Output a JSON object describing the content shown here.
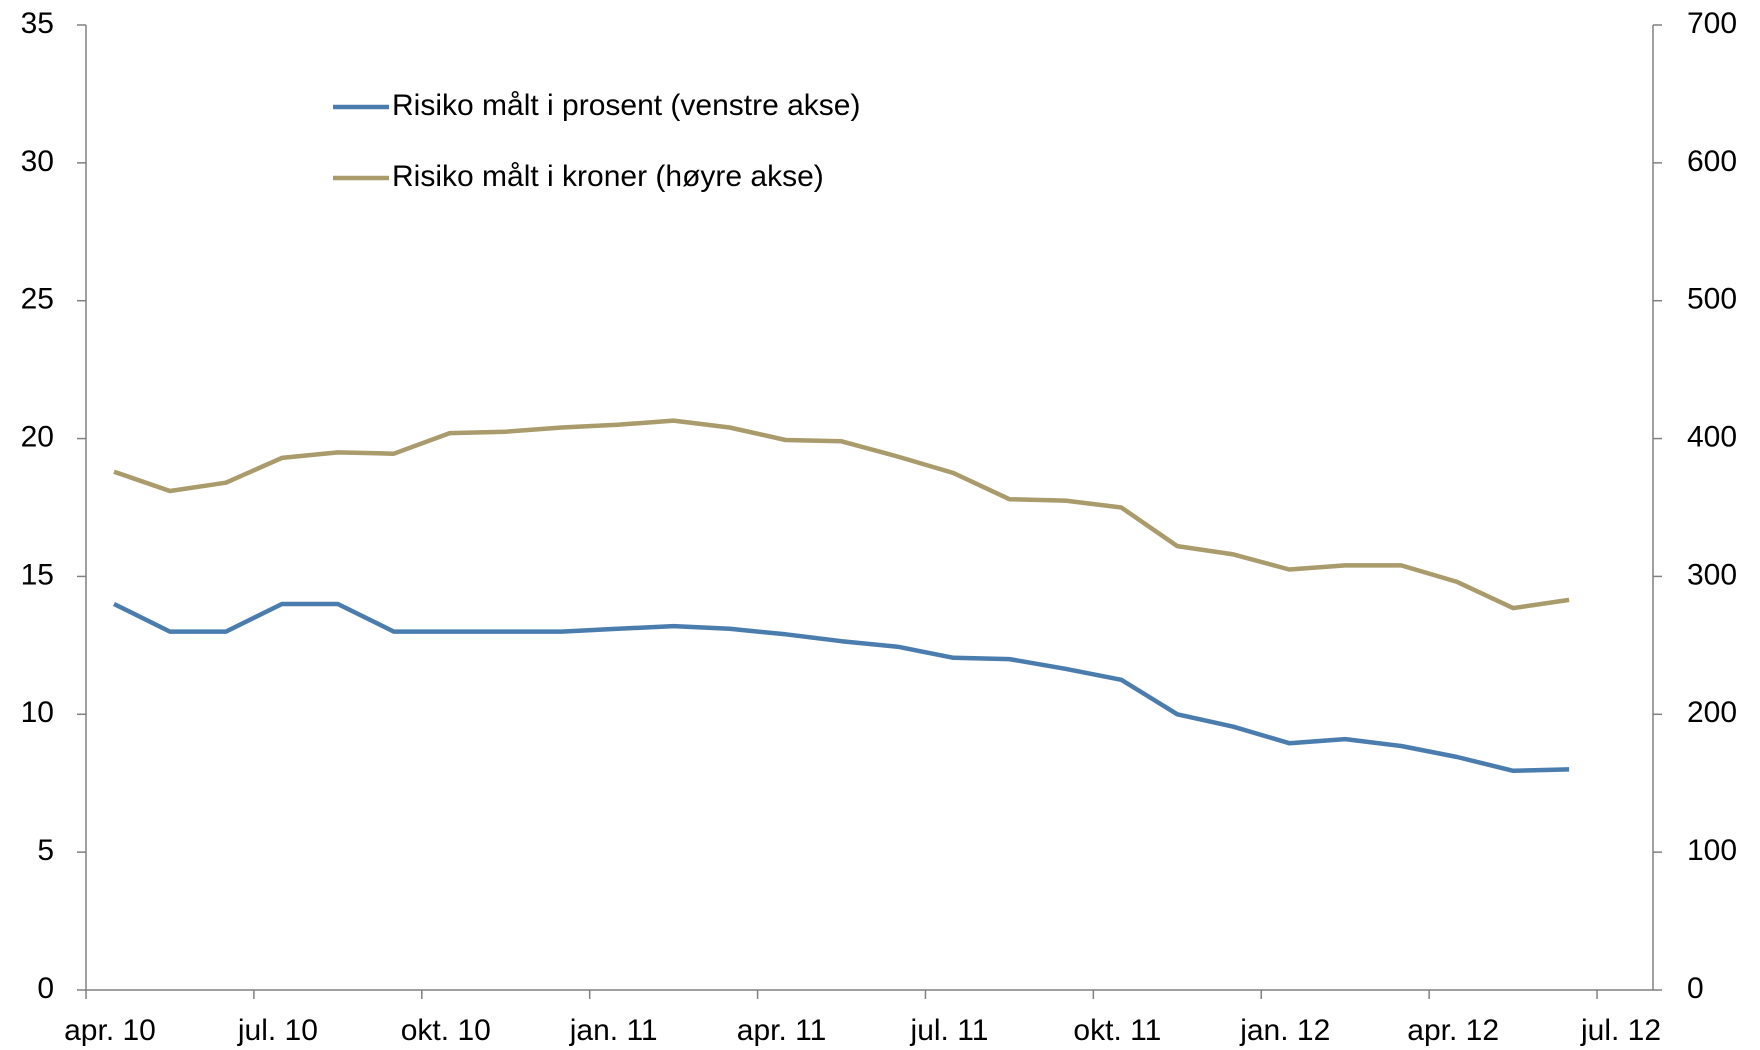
{
  "chart_data": {
    "type": "line",
    "categories": [
      "apr. 10",
      null,
      null,
      "jul. 10",
      null,
      null,
      "okt. 10",
      null,
      null,
      "jan. 11",
      null,
      null,
      "apr. 11",
      null,
      null,
      "jul. 11",
      null,
      null,
      "okt. 11",
      null,
      null,
      "jan. 12",
      null,
      null,
      "apr. 12",
      null,
      null,
      "jul. 12"
    ],
    "series": [
      {
        "name": "Risiko målt i prosent (venstre akse)",
        "color": "#4a7cae",
        "axis": "y",
        "values": [
          14,
          13,
          13,
          14,
          14,
          13,
          13,
          13,
          13,
          13.1,
          13.2,
          13.1,
          12.9,
          12.65,
          12.45,
          12.05,
          12.0,
          11.65,
          11.25,
          10.0,
          9.55,
          8.95,
          9.1,
          8.85,
          8.45,
          7.95,
          8.0,
          null
        ]
      },
      {
        "name": "Risiko målt i kroner (høyre akse)",
        "color": "#a99b6b",
        "axis": "y2",
        "values": [
          376,
          362,
          368,
          386,
          390,
          389,
          404,
          405,
          408,
          410,
          413,
          408,
          399,
          398,
          387,
          375,
          356,
          355,
          350,
          322,
          316,
          305,
          308,
          308,
          296,
          277,
          283,
          null
        ]
      }
    ],
    "ylim": [
      0,
      35
    ],
    "yticks": [
      0,
      5,
      10,
      15,
      20,
      25,
      30,
      35
    ],
    "y2lim": [
      0,
      700
    ],
    "y2ticks": [
      0,
      100,
      200,
      300,
      400,
      500,
      600,
      700
    ],
    "grid": false,
    "legend": "upper left"
  }
}
